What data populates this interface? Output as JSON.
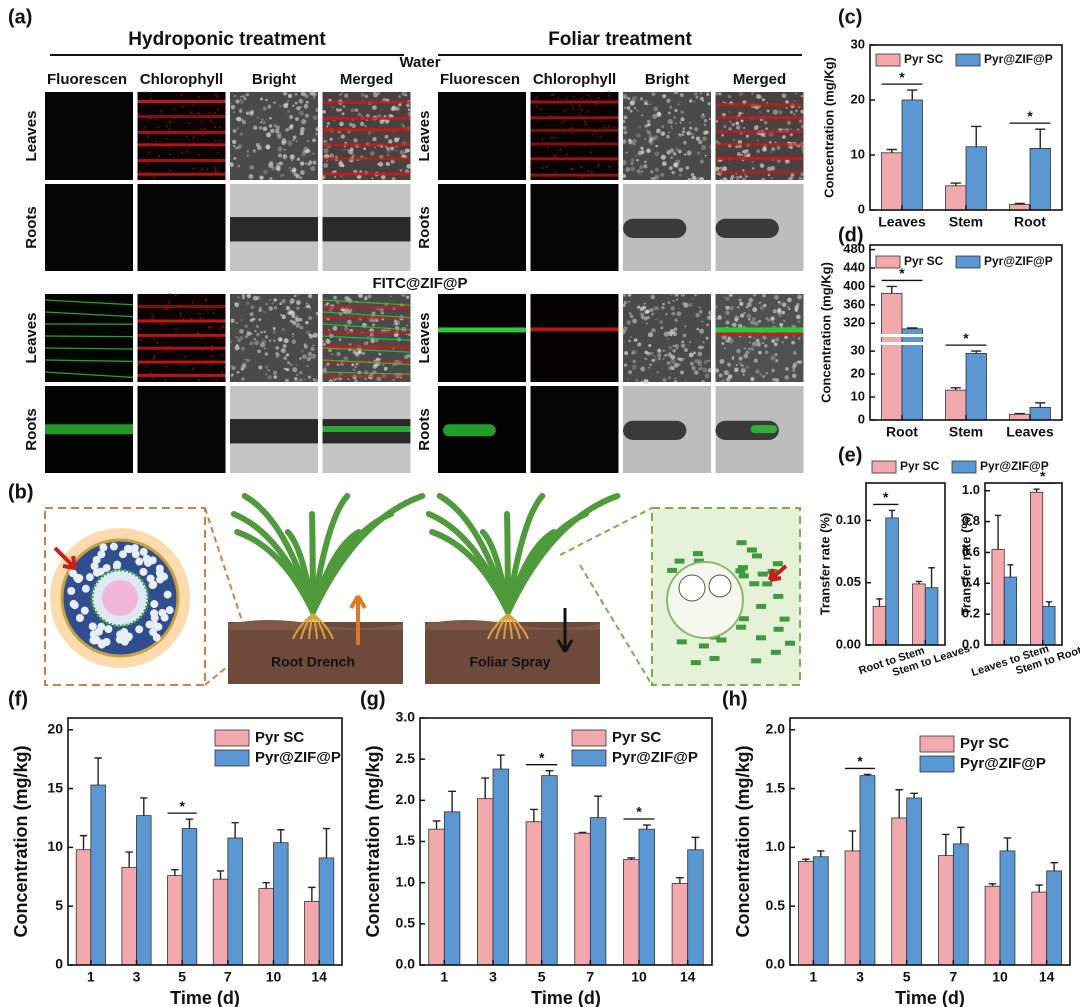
{
  "panel_a": {
    "label": "(a)",
    "groups": [
      "Hydroponic treatment",
      "Foliar treatment"
    ],
    "columns": [
      "Fluorescen",
      "Chlorophyll",
      "Bright",
      "Merged"
    ],
    "conditions": [
      "Water",
      "FITC@ZIF@P"
    ],
    "rows": [
      "Leaves",
      "Roots"
    ]
  },
  "panel_b": {
    "label": "(b)",
    "methods": [
      "Root Drench",
      "Foliar Spray"
    ]
  },
  "chart_data": [
    {
      "type": "bar",
      "label": "(c)",
      "ylabel": "Concentration (mg/Kg)",
      "categories": [
        "Leaves",
        "Stem",
        "Root"
      ],
      "series": [
        {
          "name": "Pyr SC",
          "color": "#f2a9ae",
          "values": [
            10.4,
            4.4,
            1.0
          ],
          "errors": [
            0.6,
            0.5,
            0.2
          ]
        },
        {
          "name": "Pyr@ZIF@P",
          "color": "#5b97d2",
          "values": [
            20,
            11.5,
            11.2
          ],
          "errors": [
            1.8,
            3.7,
            3.5
          ]
        }
      ],
      "ylim": [
        0,
        30
      ],
      "yticks": [
        0,
        10,
        20,
        30
      ],
      "significance": [
        "*",
        null,
        "*"
      ]
    },
    {
      "type": "bar",
      "label": "(d)",
      "ylabel": "Concentration (mg/Kg)",
      "categories": [
        "Root",
        "Stem",
        "Leaves"
      ],
      "series": [
        {
          "name": "Pyr SC",
          "color": "#f2a9ae",
          "values": [
            385,
            13,
            2.5
          ],
          "errors": [
            15,
            1,
            0.3
          ]
        },
        {
          "name": "Pyr@ZIF@P",
          "color": "#5b97d2",
          "values": [
            308,
            29,
            5.5
          ],
          "errors": [
            2,
            1,
            2
          ]
        }
      ],
      "ylim_segments": [
        [
          0,
          32
        ],
        [
          300,
          490
        ]
      ],
      "yticks": [
        0,
        10,
        20,
        30,
        320,
        360,
        400,
        440,
        480
      ],
      "significance": [
        "*",
        "*",
        null
      ]
    },
    {
      "type": "bar",
      "label": "(e)",
      "ylabel": "Transfer rate (%)",
      "categories": [
        "Root to Stem",
        "Stem to Leaves"
      ],
      "series": [
        {
          "name": "Pyr SC",
          "color": "#f2a9ae",
          "values": [
            0.031,
            0.049
          ],
          "errors": [
            0.006,
            0.002
          ]
        },
        {
          "name": "Pyr@ZIF@P",
          "color": "#5b97d2",
          "values": [
            0.102,
            0.046
          ],
          "errors": [
            0.006,
            0.016
          ]
        }
      ],
      "ylim": [
        0,
        0.13
      ],
      "yticks": [
        {
          "value": 0,
          "label": "0.00"
        },
        {
          "value": 0.05,
          "label": "0.05"
        },
        {
          "value": 0.1,
          "label": "0.10"
        }
      ],
      "significance": [
        "*",
        null
      ]
    },
    {
      "type": "bar",
      "ylabel": "Transfer rate (%)",
      "categories": [
        "Leaves to Stem",
        "Stem to Root"
      ],
      "series": [
        {
          "color": "#f2a9ae",
          "values": [
            0.62,
            0.99
          ],
          "errors": [
            0.22,
            0.02
          ]
        },
        {
          "color": "#5b97d2",
          "values": [
            0.44,
            0.25
          ],
          "errors": [
            0.08,
            0.03
          ]
        }
      ],
      "ylim": [
        0,
        1.05
      ],
      "yticks": [
        {
          "value": 0,
          "label": "0.0"
        },
        {
          "value": 0.2,
          "label": "0.2"
        },
        {
          "value": 0.4,
          "label": "0.4"
        },
        {
          "value": 0.6,
          "label": "0.6"
        },
        {
          "value": 0.8,
          "label": "0.8"
        },
        {
          "value": 1,
          "label": "1.0"
        }
      ],
      "significance": [
        null,
        "*"
      ]
    },
    {
      "type": "bar",
      "label": "(f)",
      "ylabel": "Concentration (mg/kg)",
      "xlabel": "Time (d)",
      "categories": [
        "1",
        "3",
        "5",
        "7",
        "10",
        "14"
      ],
      "series": [
        {
          "name": "Pyr SC",
          "color": "#f2a9ae",
          "values": [
            9.8,
            8.3,
            7.6,
            7.3,
            6.5,
            5.4
          ],
          "errors": [
            1.2,
            1.3,
            0.5,
            0.7,
            0.5,
            1.2
          ]
        },
        {
          "name": "Pyr@ZIF@P",
          "color": "#5b97d2",
          "values": [
            15.3,
            12.7,
            11.6,
            10.8,
            10.4,
            9.1
          ],
          "errors": [
            2.3,
            1.5,
            0.8,
            1.3,
            1.1,
            2.5
          ]
        }
      ],
      "ylim": [
        0,
        21
      ],
      "yticks": [
        0,
        5,
        10,
        15,
        20
      ],
      "significance": [
        null,
        null,
        "*",
        null,
        null,
        null
      ]
    },
    {
      "type": "bar",
      "label": "(g)",
      "ylabel": "Concentration (mg/kg)",
      "xlabel": "Time (d)",
      "categories": [
        "1",
        "3",
        "5",
        "7",
        "10",
        "14"
      ],
      "series": [
        {
          "name": "Pyr SC",
          "color": "#f2a9ae",
          "values": [
            1.65,
            2.02,
            1.74,
            1.6,
            1.28,
            0.99
          ],
          "errors": [
            0.1,
            0.25,
            0.15,
            0.01,
            0.02,
            0.07
          ]
        },
        {
          "name": "Pyr@ZIF@P",
          "color": "#5b97d2",
          "values": [
            1.86,
            2.38,
            2.3,
            1.79,
            1.65,
            1.4
          ],
          "errors": [
            0.25,
            0.17,
            0.06,
            0.26,
            0.05,
            0.15
          ]
        }
      ],
      "ylim": [
        0,
        3
      ],
      "yticks": [
        {
          "value": 0,
          "label": "0.0"
        },
        {
          "value": 0.5,
          "label": "0.5"
        },
        {
          "value": 1,
          "label": "1.0"
        },
        {
          "value": 1.5,
          "label": "1.5"
        },
        {
          "value": 2,
          "label": "2.0"
        },
        {
          "value": 2.5,
          "label": "2.5"
        },
        {
          "value": 3,
          "label": "3.0"
        }
      ],
      "significance": [
        null,
        null,
        "*",
        null,
        "*",
        null
      ]
    },
    {
      "type": "bar",
      "label": "(h)",
      "ylabel": "Concentration (mg/kg)",
      "xlabel": "Time (d)",
      "categories": [
        "1",
        "3",
        "5",
        "7",
        "10",
        "14"
      ],
      "series": [
        {
          "name": "Pyr SC",
          "color": "#f2a9ae",
          "values": [
            0.88,
            0.97,
            1.25,
            0.93,
            0.67,
            0.62
          ],
          "errors": [
            0.02,
            0.17,
            0.24,
            0.18,
            0.02,
            0.06
          ]
        },
        {
          "name": "Pyr@ZIF@P",
          "color": "#5b97d2",
          "values": [
            0.92,
            1.61,
            1.42,
            1.03,
            0.97,
            0.8
          ],
          "errors": [
            0.05,
            0.01,
            0.04,
            0.14,
            0.11,
            0.07
          ]
        }
      ],
      "ylim": [
        0,
        2.1
      ],
      "yticks": [
        {
          "value": 0,
          "label": "0.0"
        },
        {
          "value": 0.5,
          "label": "0.5"
        },
        {
          "value": 1,
          "label": "1.0"
        },
        {
          "value": 1.5,
          "label": "1.5"
        },
        {
          "value": 2,
          "label": "2.0"
        }
      ],
      "significance": [
        null,
        "*",
        null,
        null,
        null,
        null
      ]
    }
  ]
}
